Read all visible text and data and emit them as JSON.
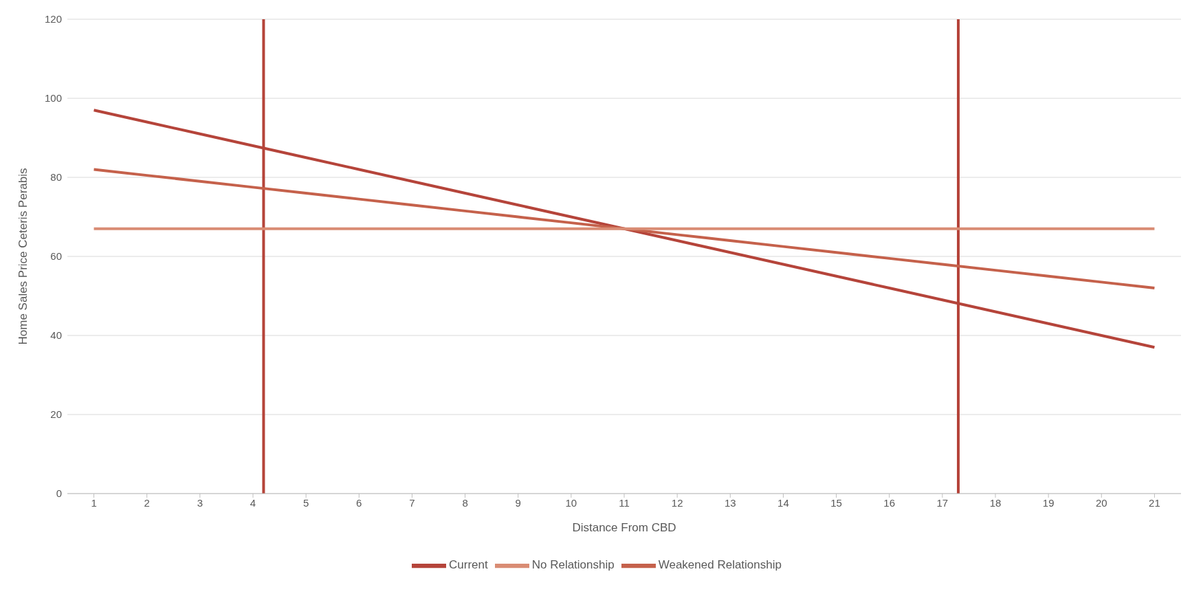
{
  "chart_data": {
    "type": "line",
    "xlabel": "Distance From CBD",
    "ylabel": "Home Sales Price Ceteris Perabis",
    "x": [
      1,
      2,
      3,
      4,
      5,
      6,
      7,
      8,
      9,
      10,
      11,
      12,
      13,
      14,
      15,
      16,
      17,
      18,
      19,
      20,
      21
    ],
    "xlim": [
      0.5,
      21.5
    ],
    "xticks": [
      1,
      2,
      3,
      4,
      5,
      6,
      7,
      8,
      9,
      10,
      11,
      12,
      13,
      14,
      15,
      16,
      17,
      18,
      19,
      20,
      21
    ],
    "ylim": [
      0,
      120
    ],
    "yticks": [
      0,
      20,
      40,
      60,
      80,
      100,
      120
    ],
    "series": [
      {
        "name": "Current",
        "color": "#b5443a",
        "values": [
          97,
          94,
          91,
          88,
          85,
          82,
          79,
          76,
          73,
          70,
          67,
          64,
          61,
          58,
          55,
          52,
          49,
          46,
          43,
          40,
          37
        ]
      },
      {
        "name": "Weakened Relationship",
        "color": "#c5614b",
        "values": [
          82,
          80.5,
          79,
          77.5,
          76,
          74.5,
          73,
          71.5,
          70,
          68.5,
          67,
          65.5,
          64,
          62.5,
          61,
          59.5,
          58,
          56.5,
          55,
          53.5,
          52
        ]
      },
      {
        "name": "No Relationship",
        "color": "#d98c74",
        "values": [
          67,
          67,
          67,
          67,
          67,
          67,
          67,
          67,
          67,
          67,
          67,
          67,
          67,
          67,
          67,
          67,
          67,
          67,
          67,
          67,
          67
        ]
      }
    ],
    "ref_lines": [
      {
        "axis": "x",
        "value": 4.2,
        "color": "#b5443a"
      },
      {
        "axis": "x",
        "value": 17.3,
        "color": "#b5443a"
      }
    ],
    "grid": "y",
    "legend": "bottom",
    "marker": "none",
    "line_style": "solid"
  }
}
